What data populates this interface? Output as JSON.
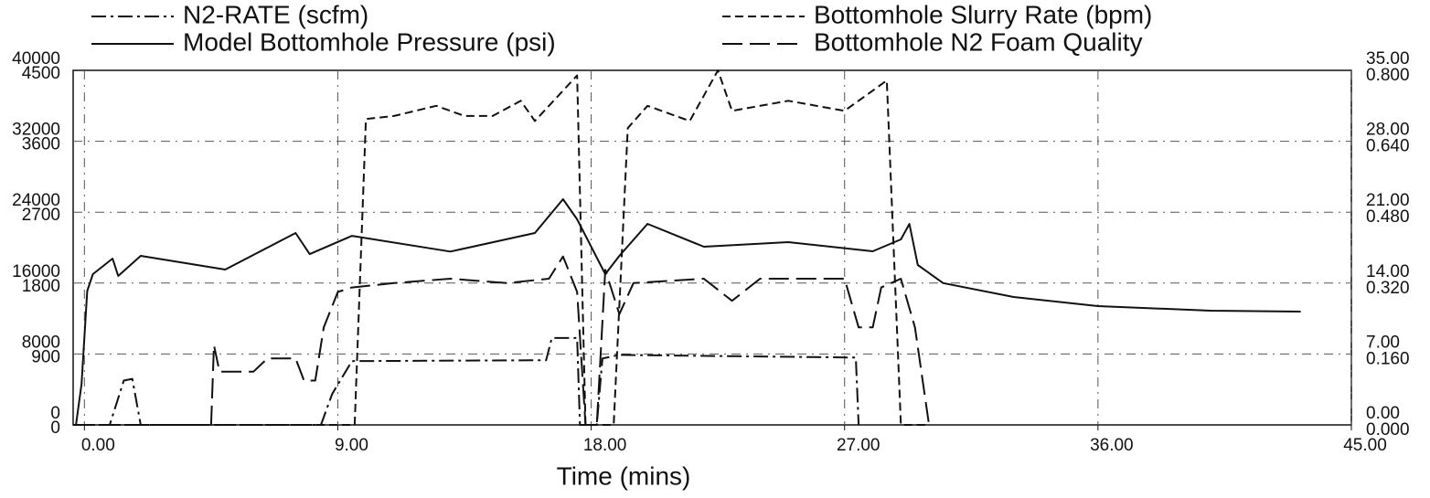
{
  "chart_data": {
    "type": "line",
    "xlabel": "Time (mins)",
    "xlim": [
      -0.4,
      45
    ],
    "xticks": [
      {
        "value": 0,
        "label": "0.00"
      },
      {
        "value": 9,
        "label": "9.00"
      },
      {
        "value": 18,
        "label": "18.00"
      },
      {
        "value": 27,
        "label": "27.00"
      },
      {
        "value": 36,
        "label": "36.00"
      },
      {
        "value": 45,
        "label": "45.00"
      }
    ],
    "ylim": [
      0,
      40000
    ],
    "yticks": [
      0,
      8000,
      16000,
      24000,
      32000,
      40000
    ],
    "y2lim": [
      0,
      4500
    ],
    "y2ticks": [
      0,
      900,
      1800,
      2700,
      3600,
      4500
    ],
    "y3lim": [
      0,
      35
    ],
    "y3ticks": [
      {
        "value": 0,
        "label": "0.00"
      },
      {
        "value": 7,
        "label": "7.00"
      },
      {
        "value": 14,
        "label": "14.00"
      },
      {
        "value": 21,
        "label": "21.00"
      },
      {
        "value": 28,
        "label": "28.00"
      },
      {
        "value": 35,
        "label": "35.00"
      }
    ],
    "y4lim": [
      0,
      0.8
    ],
    "y4ticks": [
      {
        "value": 0,
        "label": "0.000"
      },
      {
        "value": 0.16,
        "label": "0.160"
      },
      {
        "value": 0.32,
        "label": "0.320"
      },
      {
        "value": 0.48,
        "label": "0.480"
      },
      {
        "value": 0.64,
        "label": "0.640"
      },
      {
        "value": 0.8,
        "label": "0.800"
      }
    ],
    "grid": true,
    "series": [
      {
        "name": "N2-RATE (scfm)",
        "color": "#111111",
        "dash": "16 5 3 5",
        "axis": "y",
        "x": [
          -0.4,
          0.9,
          1.4,
          1.7,
          2.0,
          8.4,
          8.8,
          9.5,
          16.4,
          16.6,
          17.5,
          17.6,
          18.2,
          18.4,
          19.0,
          27.4,
          27.5
        ],
        "values": [
          0,
          0,
          5000,
          5200,
          0,
          0,
          3500,
          7200,
          7300,
          9800,
          9800,
          0,
          0,
          7500,
          7900,
          7600,
          0
        ]
      },
      {
        "name": "Model Bottomhole Pressure (psi)",
        "color": "#111111",
        "dash": "",
        "axis": "y2",
        "x": [
          -0.3,
          -0.1,
          0.1,
          0.3,
          1.0,
          1.2,
          2.0,
          5.0,
          7.5,
          8.0,
          9.5,
          13.0,
          16.0,
          17.0,
          17.5,
          18.5,
          19.0,
          20.0,
          22.0,
          25.0,
          28.0,
          29.0,
          29.3,
          29.6,
          30.5,
          33.0,
          36.0,
          40.0,
          43.2
        ],
        "values": [
          0,
          520,
          1700,
          1914,
          2111,
          1890,
          2146,
          1972,
          2435,
          2168,
          2400,
          2200,
          2435,
          2865,
          2610,
          1914,
          2146,
          2551,
          2262,
          2320,
          2204,
          2354,
          2550,
          2030,
          1800,
          1624,
          1508,
          1450,
          1438
        ]
      },
      {
        "name": "Bottomhole Slurry Rate (bpm)",
        "color": "#111111",
        "dash": "9 5",
        "axis": "y3",
        "x": [
          -0.4,
          9.6,
          10.0,
          11.0,
          12.5,
          13.5,
          14.5,
          15.5,
          16.0,
          17.0,
          17.5,
          17.8,
          18.8,
          19.3,
          20.0,
          21.5,
          22.5,
          23.0,
          25.0,
          27.0,
          28.5,
          29.0,
          30.0
        ],
        "values": [
          0,
          0,
          30.2,
          30.5,
          31.5,
          30.5,
          30.5,
          32,
          30,
          33,
          34.5,
          0,
          0,
          29.3,
          31.5,
          30,
          35,
          31,
          32,
          31,
          34,
          0,
          0
        ]
      },
      {
        "name": "Bottomhole N2 Foam Quality",
        "color": "#111111",
        "dash": "22 8",
        "axis": "y4",
        "x": [
          -0.4,
          4.5,
          4.6,
          4.8,
          6.0,
          6.5,
          7.5,
          7.8,
          8.2,
          8.5,
          9.0,
          9.5,
          11.0,
          13.0,
          15.0,
          16.5,
          17.0,
          17.5,
          17.8,
          18.2,
          18.5,
          19.0,
          19.5,
          22.0,
          23.0,
          24.0,
          27.0,
          27.5,
          28.0,
          28.3,
          29.0,
          29.5,
          30.0
        ],
        "values": [
          0,
          0,
          0.18,
          0.12,
          0.12,
          0.15,
          0.15,
          0.1,
          0.1,
          0.22,
          0.3,
          0.31,
          0.32,
          0.33,
          0.32,
          0.33,
          0.38,
          0.3,
          0,
          0,
          0.35,
          0.25,
          0.32,
          0.33,
          0.28,
          0.33,
          0.33,
          0.22,
          0.22,
          0.31,
          0.33,
          0.22,
          0
        ]
      }
    ]
  }
}
